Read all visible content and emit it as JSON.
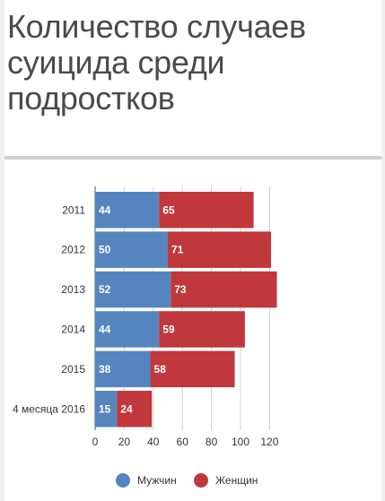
{
  "chart_data": {
    "type": "bar",
    "stacked": true,
    "orientation": "horizontal",
    "title": "Количество случаев суицида среди подростков",
    "categories": [
      "2011",
      "2012",
      "2013",
      "2014",
      "2015",
      "4 месяца 2016"
    ],
    "series": [
      {
        "name": "Мужчин",
        "color": "#5585bf",
        "values": [
          44,
          50,
          52,
          44,
          38,
          15
        ]
      },
      {
        "name": "Женщин",
        "color": "#c0373c",
        "values": [
          65,
          71,
          73,
          59,
          58,
          24
        ]
      }
    ],
    "xlim": [
      0,
      130
    ],
    "xticks": [
      0,
      20,
      40,
      60,
      80,
      100,
      120
    ],
    "grid": true,
    "legend_position": "bottom"
  }
}
